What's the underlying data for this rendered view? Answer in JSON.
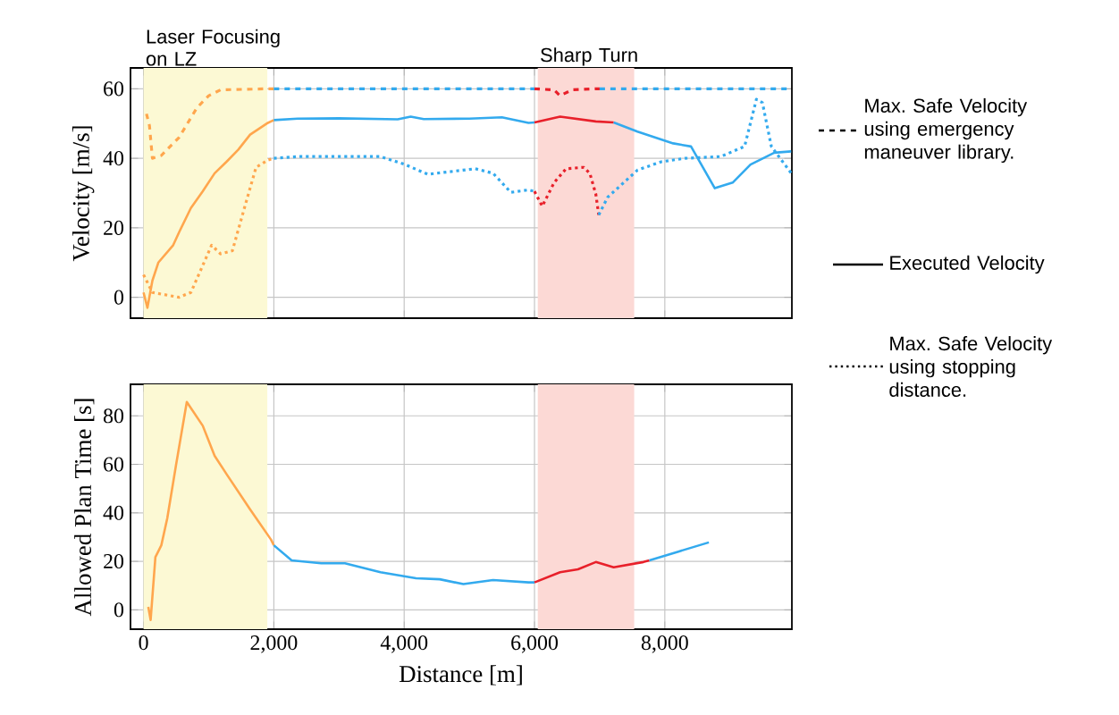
{
  "chart_data": [
    {
      "type": "line",
      "ylabel": "Velocity [m/s]",
      "xlim": [
        -200,
        9950
      ],
      "ylim": [
        -6,
        66
      ],
      "xticks": [
        0,
        2000,
        4000,
        6000,
        8000
      ],
      "yticks": [
        0,
        20,
        40,
        60
      ],
      "grid": true,
      "tick_labels": "y",
      "bands": [
        {
          "axis": "x",
          "from": 0,
          "to": 1900,
          "label": "Laser Focusing on LZ",
          "color": "#fcf9d4"
        },
        {
          "axis": "x",
          "from": 6050,
          "to": 7530,
          "label": "Sharp Turn",
          "color": "#fcd9d5"
        }
      ],
      "annotations": [
        "Max. Safe Velocity using emergency maneuver library.",
        "Executed Velocity",
        "Max. Safe Velocity using stopping distance."
      ],
      "series": [
        {
          "color": "#ffa64d",
          "line_style": "dashed",
          "x": [
            45,
            91,
            136,
            273,
            545,
            818,
            1000,
            1182,
            1909,
            2000
          ],
          "values": [
            52.8,
            49.4,
            40,
            40.8,
            46,
            54.5,
            58,
            59.7,
            60,
            60
          ]
        },
        {
          "color": "#33aaee",
          "line_style": "dashed",
          "x": [
            2000,
            6000
          ],
          "values": [
            60,
            60
          ]
        },
        {
          "color": "#e8202a",
          "line_style": "dashed",
          "x": [
            6000,
            6300,
            6390,
            6575,
            6941,
            7000
          ],
          "values": [
            60,
            59.7,
            58,
            59.7,
            60,
            60
          ]
        },
        {
          "color": "#33aaee",
          "line_style": "dashed",
          "x": [
            7000,
            9940
          ],
          "values": [
            60,
            60
          ]
        },
        {
          "color": "#ffa64d",
          "line_style": "solid",
          "x": [
            0,
            60,
            136,
            227,
            455,
            545,
            727,
            909,
            1091,
            1273,
            1455,
            1636,
            1909,
            2000
          ],
          "values": [
            1.4,
            -3,
            4.8,
            10,
            15,
            18.7,
            25.7,
            30.5,
            35.7,
            39,
            42.5,
            46.8,
            50.2,
            51
          ]
        },
        {
          "color": "#33aaee",
          "line_style": "solid",
          "x": [
            2000,
            2364,
            3000,
            3900,
            4100,
            4300,
            5000,
            5500,
            5909,
            6000
          ],
          "values": [
            51,
            51.4,
            51.5,
            51.2,
            52,
            51.3,
            51.4,
            51.8,
            50.2,
            50.3
          ]
        },
        {
          "color": "#e8202a",
          "line_style": "solid",
          "x": [
            6000,
            6393,
            6941,
            7215
          ],
          "values": [
            50.3,
            52,
            50.6,
            50.3
          ]
        },
        {
          "color": "#33aaee",
          "line_style": "solid",
          "x": [
            7215,
            7580,
            8128,
            8402,
            8767,
            9041,
            9315,
            9680,
            9940
          ],
          "values": [
            50.3,
            47.7,
            44.3,
            43.4,
            31.4,
            33,
            38.2,
            41.6,
            42
          ]
        },
        {
          "color": "#ffa64d",
          "line_style": "dotted",
          "x": [
            0,
            136,
            545,
            727,
            1045,
            1182,
            1364,
            1545,
            1727,
            1909,
            2000
          ],
          "values": [
            6.5,
            1.4,
            0,
            1.4,
            15,
            12.5,
            13.4,
            25.5,
            37.4,
            39.5,
            40
          ]
        },
        {
          "color": "#33aaee",
          "line_style": "dotted",
          "x": [
            2000,
            2364,
            3636,
            4000,
            4364,
            5091,
            5364,
            5636,
            5909,
            6000
          ],
          "values": [
            40,
            40.5,
            40.5,
            38.3,
            35.4,
            37,
            35.7,
            30.2,
            30.9,
            30.5
          ]
        },
        {
          "color": "#e8202a",
          "line_style": "dotted",
          "x": [
            6000,
            6119,
            6301,
            6484,
            6758,
            6849,
            6941,
            6986
          ],
          "values": [
            30.5,
            26.2,
            33,
            37,
            37.4,
            35.7,
            29.7,
            23.7
          ]
        },
        {
          "color": "#33aaee",
          "line_style": "dotted",
          "x": [
            6986,
            7123,
            7580,
            7945,
            8311,
            8858,
            9224,
            9406,
            9498,
            9635,
            9940
          ],
          "values": [
            23.7,
            28.8,
            36.6,
            39,
            40,
            40.5,
            43.4,
            57,
            56,
            43.4,
            35.7
          ]
        }
      ]
    },
    {
      "type": "line",
      "ylabel": "Allowed Plan Time [s]",
      "xlabel": "Distance [m]",
      "xlim": [
        -200,
        9950
      ],
      "ylim": [
        -8,
        93
      ],
      "xticks": [
        0,
        {
          "value": 2000,
          "label": "2,000"
        },
        {
          "value": 4000,
          "label": "4,000"
        },
        {
          "value": 6000,
          "label": "6,000"
        },
        {
          "value": 8000,
          "label": "8,000"
        }
      ],
      "yticks": [
        0,
        20,
        40,
        60,
        80
      ],
      "grid": true,
      "bands": [
        {
          "axis": "x",
          "from": 0,
          "to": 1900,
          "color": "#fcf9d4"
        },
        {
          "axis": "x",
          "from": 6050,
          "to": 7530,
          "color": "#fcd9d5"
        }
      ],
      "series": [
        {
          "color": "#ffa64d",
          "line_style": "solid",
          "x": [
            73,
            109,
            182,
            273,
            364,
            500,
            664,
            909,
            1091,
            1273,
            1636,
            1955,
            2000
          ],
          "values": [
            1.2,
            -4.2,
            21.7,
            26.6,
            37.7,
            59.9,
            85.7,
            75.9,
            63.5,
            56,
            41.4,
            29,
            26.6
          ]
        },
        {
          "color": "#33aaee",
          "line_style": "solid",
          "x": [
            2000,
            2273,
            2727,
            3091,
            3636,
            4182,
            4545,
            4909,
            5364,
            5909,
            6000
          ],
          "values": [
            26.6,
            20.4,
            19.2,
            19.2,
            15.5,
            13,
            12.6,
            10.6,
            12.3,
            11.3,
            11.3
          ]
        },
        {
          "color": "#e8202a",
          "line_style": "solid",
          "x": [
            6000,
            6393,
            6667,
            6941,
            7215,
            7671,
            7763
          ],
          "values": [
            11.3,
            15.5,
            16.7,
            19.7,
            17.5,
            19.7,
            20.4
          ]
        },
        {
          "color": "#33aaee",
          "line_style": "solid",
          "x": [
            7763,
            8219,
            8676
          ],
          "values": [
            20.4,
            24.1,
            27.8
          ]
        }
      ]
    }
  ]
}
